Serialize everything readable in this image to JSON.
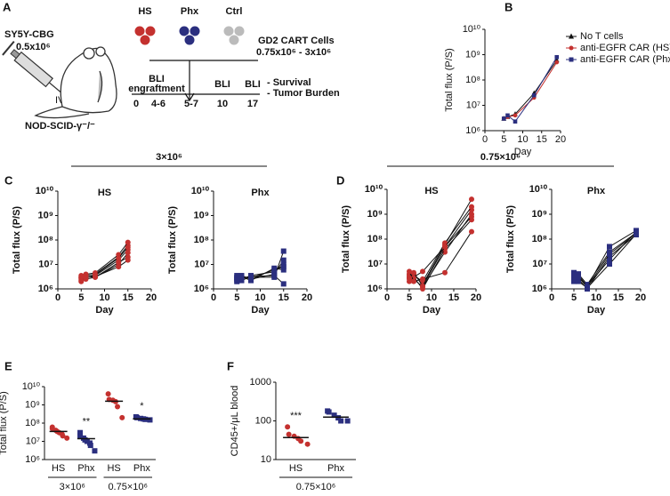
{
  "panel_A": {
    "label": "A",
    "cell_line": "SY5Y-CBG",
    "dose": "0.5x10⁶",
    "route": "IV",
    "mouse": "NOD-SCID-γ⁻/⁻",
    "groups": [
      "HS",
      "Phx",
      "Ctrl"
    ],
    "treatment": "GD2 CART Cells",
    "treatment_dose": "0.75x10⁶  - 3x10⁶",
    "timeline": {
      "days": [
        "0",
        "4-6",
        "5-7",
        "10",
        "17"
      ],
      "events": [
        "BLI",
        "engraftment",
        "BLI",
        "BLI"
      ],
      "outcomes": [
        "- Survival",
        "- Tumor Burden"
      ]
    }
  },
  "chart_data": [
    {
      "type": "line",
      "panel": "B",
      "ylabel": "Total flux (P/S)",
      "xlabel": "Day",
      "log_y": true,
      "legend": "right",
      "x": [
        5,
        6,
        8,
        13,
        19
      ],
      "xlim": [
        0,
        20
      ],
      "xticks": [
        0,
        5,
        10,
        15,
        20
      ],
      "ylim": [
        1000000,
        10000000000
      ],
      "yticks": [
        {
          "value": 1000000,
          "label": "10⁶"
        },
        {
          "value": 10000000,
          "label": "10⁷"
        },
        {
          "value": 100000000,
          "label": "10⁸"
        },
        {
          "value": 1000000000,
          "label": "10⁹"
        },
        {
          "value": 10000000000,
          "label": "10¹⁰"
        }
      ],
      "series": [
        {
          "name": "No T cells",
          "color": "#111111",
          "marker": "triangle",
          "values": [
            3000000,
            3500000,
            4500000,
            30000000,
            600000000
          ]
        },
        {
          "name": "anti-EGFR CAR (HS)",
          "color": "#c4312f",
          "marker": "circle",
          "values": [
            3000000,
            3500000,
            4000000,
            20000000,
            500000000
          ]
        },
        {
          "name": "anti-EGFR CAR (Phx)",
          "color": "#2b2f7f",
          "marker": "square",
          "values": [
            3000000,
            4000000,
            2300000,
            25000000,
            800000000
          ]
        }
      ]
    },
    {
      "type": "line",
      "panel": "C",
      "header": "3×10⁶",
      "title": "HS",
      "ylabel": "Total flux (P/S)",
      "xlabel": "Day",
      "log_y": true,
      "color": "#c4312f",
      "marker": "circle",
      "x": [
        5,
        6,
        8,
        13,
        15
      ],
      "xlim": [
        0,
        20
      ],
      "xticks": [
        0,
        5,
        10,
        15,
        20
      ],
      "ylim": [
        1000000,
        10000000000
      ],
      "yticks": [
        {
          "value": 1000000,
          "label": "10⁶"
        },
        {
          "value": 10000000,
          "label": "10⁷"
        },
        {
          "value": 100000000,
          "label": "10⁸"
        },
        {
          "value": 1000000000,
          "label": "10⁹"
        },
        {
          "value": 10000000000,
          "label": "10¹⁰"
        }
      ],
      "series": [
        {
          "values": [
            2500000,
            3000000,
            3500000,
            15000000,
            40000000
          ]
        },
        {
          "values": [
            3000000,
            3500000,
            4000000,
            20000000,
            60000000
          ]
        },
        {
          "values": [
            2000000,
            2500000,
            3000000,
            10000000,
            30000000
          ]
        },
        {
          "values": [
            3500000,
            4000000,
            4500000,
            25000000,
            80000000
          ]
        },
        {
          "values": [
            2800000,
            3200000,
            3000000,
            12000000,
            20000000
          ]
        },
        {
          "values": [
            2200000,
            2800000,
            3800000,
            18000000,
            50000000
          ]
        },
        {
          "values": [
            3000000,
            3000000,
            3200000,
            8000000,
            15000000
          ]
        }
      ]
    },
    {
      "type": "line",
      "title": "Phx",
      "ylabel": "Total flux (P/S)",
      "xlabel": "Day",
      "log_y": true,
      "color": "#2b2f7f",
      "marker": "square",
      "x": [
        5,
        6,
        8,
        13,
        15
      ],
      "xlim": [
        0,
        20
      ],
      "xticks": [
        0,
        5,
        10,
        15,
        20
      ],
      "ylim": [
        1000000,
        10000000000
      ],
      "yticks": [
        {
          "value": 1000000,
          "label": "10⁶"
        },
        {
          "value": 10000000,
          "label": "10⁷"
        },
        {
          "value": 100000000,
          "label": "10⁸"
        },
        {
          "value": 1000000000,
          "label": "10⁹"
        },
        {
          "value": 10000000000,
          "label": "10¹⁰"
        }
      ],
      "series": [
        {
          "values": [
            2500000,
            3000000,
            3000000,
            3000000,
            35000000
          ]
        },
        {
          "values": [
            3000000,
            3500000,
            2500000,
            4000000,
            15000000
          ]
        },
        {
          "values": [
            2000000,
            2500000,
            3500000,
            5000000,
            10000000
          ]
        },
        {
          "values": [
            3500000,
            3000000,
            2800000,
            6000000,
            8000000
          ]
        },
        {
          "values": [
            2800000,
            2200000,
            3200000,
            3500000,
            1600000
          ]
        },
        {
          "values": [
            2200000,
            3200000,
            2200000,
            7000000,
            6000000
          ]
        }
      ]
    },
    {
      "type": "line",
      "panel": "D",
      "header": "0.75×10⁶",
      "title": "HS",
      "ylabel": "Total flux (P/S)",
      "xlabel": "Day",
      "log_y": true,
      "color": "#c4312f",
      "marker": "circle",
      "x": [
        5,
        6,
        8,
        13,
        19
      ],
      "xlim": [
        0,
        20
      ],
      "xticks": [
        0,
        5,
        10,
        15,
        20
      ],
      "ylim": [
        1000000,
        10000000000
      ],
      "yticks": [
        {
          "value": 1000000,
          "label": "10⁶"
        },
        {
          "value": 10000000,
          "label": "10⁷"
        },
        {
          "value": 100000000,
          "label": "10⁸"
        },
        {
          "value": 1000000000,
          "label": "10⁹"
        },
        {
          "value": 10000000000,
          "label": "10¹⁰"
        }
      ],
      "series": [
        {
          "values": [
            3000000,
            4000000,
            1500000,
            60000000,
            4000000000
          ]
        },
        {
          "values": [
            2500000,
            3000000,
            5000000,
            50000000,
            1500000000
          ]
        },
        {
          "values": [
            4000000,
            2500000,
            1200000,
            30000000,
            1000000000
          ]
        },
        {
          "values": [
            2000000,
            3500000,
            2000000,
            70000000,
            2000000000
          ]
        },
        {
          "values": [
            3500000,
            3000000,
            1000000,
            40000000,
            600000000
          ]
        },
        {
          "values": [
            5000000,
            2000000,
            2500000,
            4500000,
            200000000
          ]
        },
        {
          "values": [
            2800000,
            4500000,
            1300000,
            50000000,
            800000000
          ]
        }
      ]
    },
    {
      "type": "line",
      "title": "Phx",
      "ylabel": "Total flux (P/S)",
      "xlabel": "Day",
      "log_y": true,
      "color": "#2b2f7f",
      "marker": "square",
      "x": [
        5,
        6,
        8,
        13,
        19
      ],
      "xlim": [
        0,
        20
      ],
      "xticks": [
        0,
        5,
        10,
        15,
        20
      ],
      "ylim": [
        1000000,
        10000000000
      ],
      "yticks": [
        {
          "value": 1000000,
          "label": "10⁶"
        },
        {
          "value": 10000000,
          "label": "10⁷"
        },
        {
          "value": 100000000,
          "label": "10⁸"
        },
        {
          "value": 1000000000,
          "label": "10⁹"
        },
        {
          "value": 10000000000,
          "label": "10¹⁰"
        }
      ],
      "series": [
        {
          "values": [
            4000000,
            3000000,
            1200000,
            50000000,
            220000000
          ]
        },
        {
          "values": [
            3000000,
            4000000,
            1500000,
            30000000,
            180000000
          ]
        },
        {
          "values": [
            2000000,
            2500000,
            1000000,
            20000000,
            150000000
          ]
        },
        {
          "values": [
            4500000,
            3500000,
            1300000,
            15000000,
            200000000
          ]
        },
        {
          "values": [
            2500000,
            2000000,
            1100000,
            10000000,
            160000000
          ]
        },
        {
          "values": [
            3500000,
            3000000,
            1200000,
            25000000,
            170000000
          ]
        }
      ]
    },
    {
      "type": "strip",
      "panel": "E",
      "ylabel": "Total flux (P/S)",
      "log_y": true,
      "categories": [
        "HS",
        "Phx",
        "HS",
        "Phx"
      ],
      "colors": [
        "#c4312f",
        "#2b2f7f",
        "#c4312f",
        "#2b2f7f"
      ],
      "markers": [
        "circle",
        "square",
        "circle",
        "square"
      ],
      "group_labels": [
        "3×10⁶",
        "0.75×10⁶"
      ],
      "annotations": [
        null,
        "**",
        null,
        "*"
      ],
      "ylim": [
        1000000,
        10000000000
      ],
      "yticks": [
        {
          "value": 1000000,
          "label": "10⁶"
        },
        {
          "value": 10000000,
          "label": "10⁷"
        },
        {
          "value": 100000000,
          "label": "10⁸"
        },
        {
          "value": 1000000000,
          "label": "10⁹"
        },
        {
          "value": 10000000000,
          "label": "10¹⁰"
        }
      ],
      "values": [
        [
          60000000,
          50000000,
          40000000,
          35000000,
          30000000,
          25000000,
          20000000,
          15000000
        ],
        [
          30000000,
          20000000,
          15000000,
          12000000,
          10000000,
          8000000,
          6000000,
          3000000
        ],
        [
          4000000000,
          2000000000,
          1800000000,
          1500000000,
          800000000,
          200000000
        ],
        [
          220000000,
          200000000,
          180000000,
          170000000,
          160000000,
          150000000
        ]
      ],
      "medians": [
        35000000,
        14000000,
        1600000000,
        170000000
      ]
    },
    {
      "type": "strip",
      "panel": "F",
      "ylabel": "CD45+/μL blood",
      "log_y": true,
      "categories": [
        "HS",
        "Phx"
      ],
      "colors": [
        "#c4312f",
        "#2b2f7f"
      ],
      "markers": [
        "circle",
        "square"
      ],
      "group_labels": [
        "0.75×10⁶"
      ],
      "annotations": [
        "***",
        null
      ],
      "ylim": [
        10,
        1000
      ],
      "yticks": [
        10,
        100,
        1000
      ],
      "values": [
        [
          70,
          45,
          40,
          35,
          30,
          25
        ],
        [
          180,
          170,
          140,
          120,
          100,
          100
        ]
      ],
      "medians": [
        37,
        125
      ]
    }
  ]
}
